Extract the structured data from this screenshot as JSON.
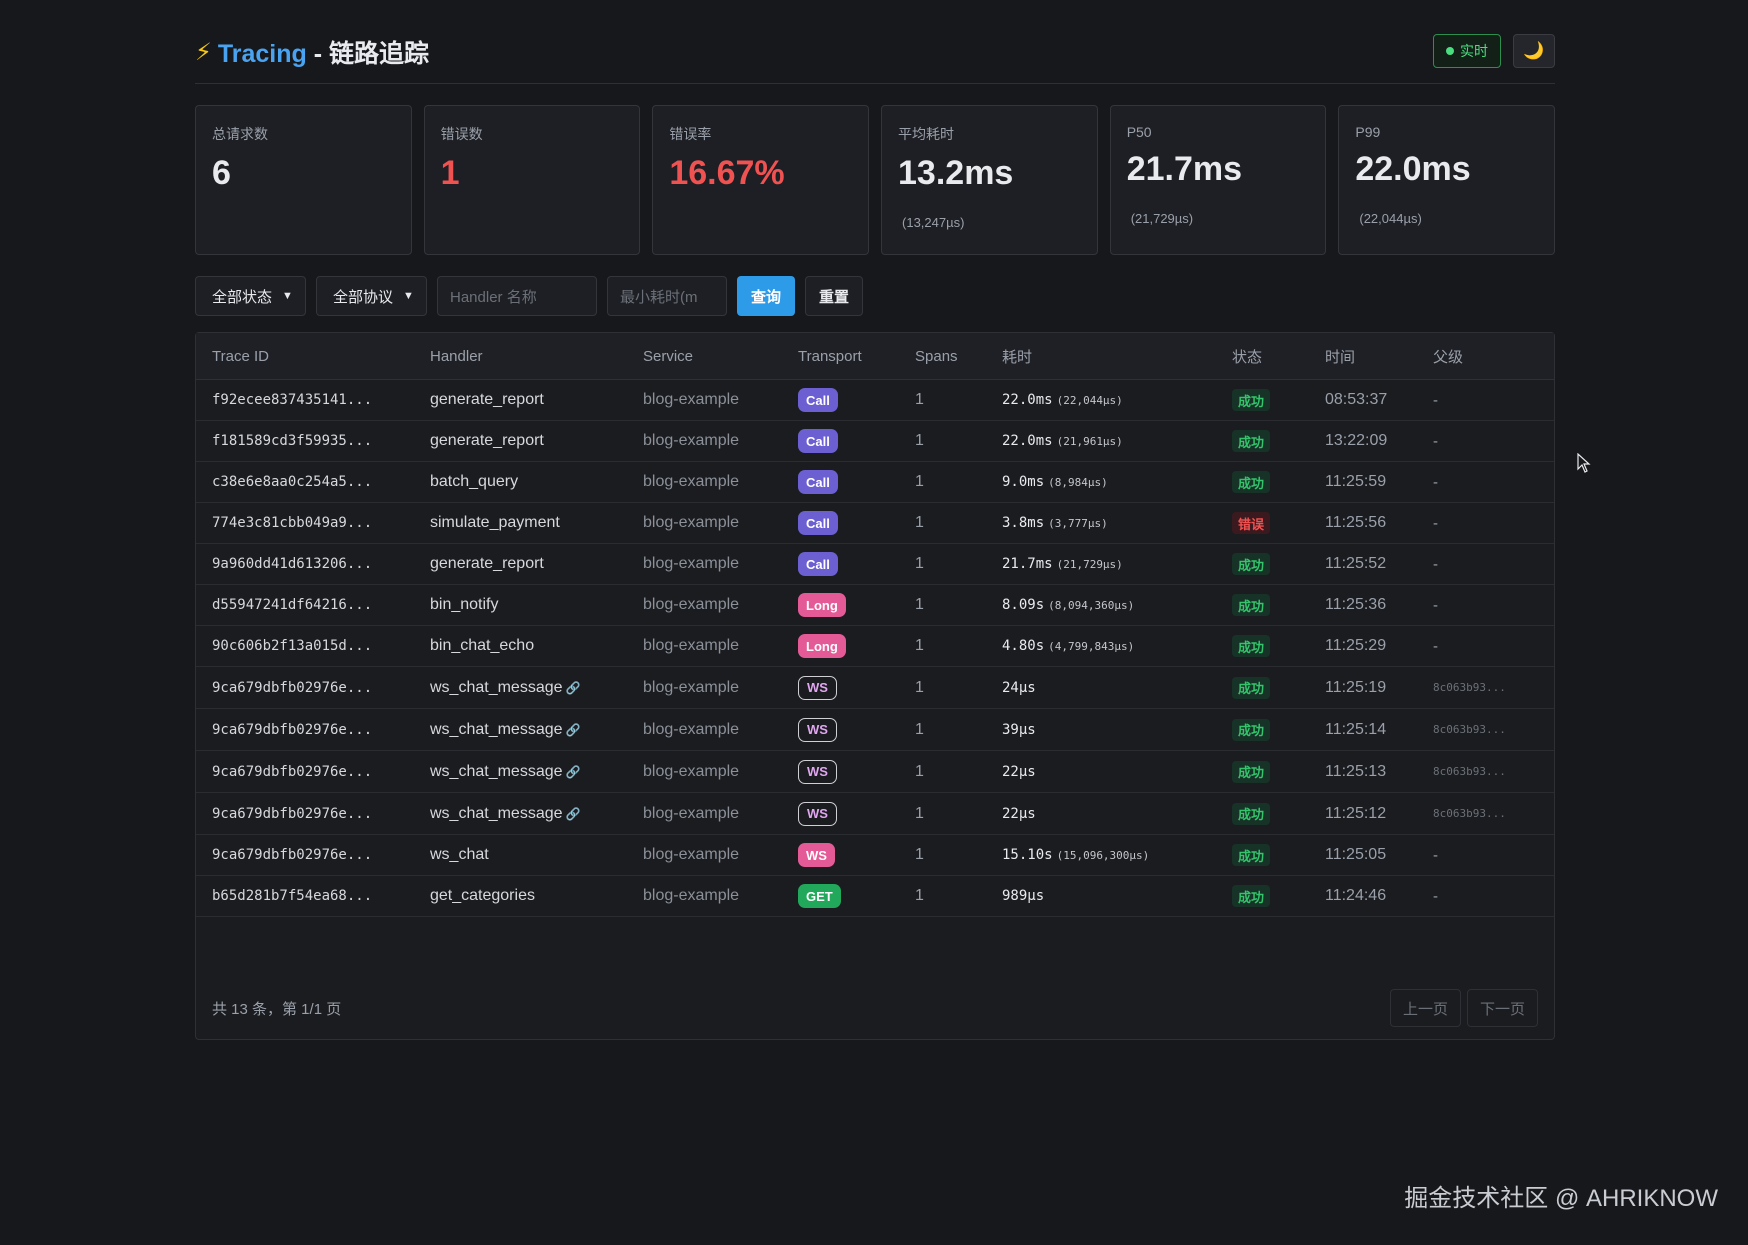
{
  "header": {
    "bolt": "⚡",
    "brand": "Tracing",
    "title_suffix": " - 链路追踪",
    "live_label": "实时",
    "theme_icon": "🌙"
  },
  "stats": [
    {
      "label": "总请求数",
      "value": "6",
      "sub": "",
      "color": "normal"
    },
    {
      "label": "错误数",
      "value": "1",
      "sub": "",
      "color": "red"
    },
    {
      "label": "错误率",
      "value": "16.67%",
      "sub": "",
      "color": "red"
    },
    {
      "label": "平均耗时",
      "value": "13.2ms",
      "sub": "(13,247µs)",
      "color": "normal"
    },
    {
      "label": "P50",
      "value": "21.7ms",
      "sub": "(21,729µs)",
      "color": "normal"
    },
    {
      "label": "P99",
      "value": "22.0ms",
      "sub": "(22,044µs)",
      "color": "normal"
    }
  ],
  "filters": {
    "status_select": "全部状态",
    "protocol_select": "全部协议",
    "handler_placeholder": "Handler 名称",
    "min_duration_placeholder": "最小耗时(m",
    "query_label": "查询",
    "reset_label": "重置"
  },
  "table": {
    "columns": [
      "Trace ID",
      "Handler",
      "Service",
      "Transport",
      "Spans",
      "耗时",
      "状态",
      "时间",
      "父级"
    ],
    "rows": [
      {
        "trace_id": "f92ecee837435141...",
        "handler": "generate_report",
        "link": false,
        "service": "blog-example",
        "transport": "Call",
        "transport_style": "call",
        "spans": "1",
        "duration": "22.0ms",
        "duration_us": "(22,044µs)",
        "status": "成功",
        "status_type": "ok",
        "time": "08:53:37",
        "parent": "-"
      },
      {
        "trace_id": "f181589cd3f59935...",
        "handler": "generate_report",
        "link": false,
        "service": "blog-example",
        "transport": "Call",
        "transport_style": "call",
        "spans": "1",
        "duration": "22.0ms",
        "duration_us": "(21,961µs)",
        "status": "成功",
        "status_type": "ok",
        "time": "13:22:09",
        "parent": "-"
      },
      {
        "trace_id": "c38e6e8aa0c254a5...",
        "handler": "batch_query",
        "link": false,
        "service": "blog-example",
        "transport": "Call",
        "transport_style": "call",
        "spans": "1",
        "duration": "9.0ms",
        "duration_us": "(8,984µs)",
        "status": "成功",
        "status_type": "ok",
        "time": "11:25:59",
        "parent": "-"
      },
      {
        "trace_id": "774e3c81cbb049a9...",
        "handler": "simulate_payment",
        "link": false,
        "service": "blog-example",
        "transport": "Call",
        "transport_style": "call",
        "spans": "1",
        "duration": "3.8ms",
        "duration_us": "(3,777µs)",
        "status": "错误",
        "status_type": "err",
        "time": "11:25:56",
        "parent": "-"
      },
      {
        "trace_id": "9a960dd41d613206...",
        "handler": "generate_report",
        "link": false,
        "service": "blog-example",
        "transport": "Call",
        "transport_style": "call",
        "spans": "1",
        "duration": "21.7ms",
        "duration_us": "(21,729µs)",
        "status": "成功",
        "status_type": "ok",
        "time": "11:25:52",
        "parent": "-"
      },
      {
        "trace_id": "d55947241df64216...",
        "handler": "bin_notify",
        "link": false,
        "service": "blog-example",
        "transport": "Long",
        "transport_style": "long",
        "spans": "1",
        "duration": "8.09s",
        "duration_us": "(8,094,360µs)",
        "status": "成功",
        "status_type": "ok",
        "time": "11:25:36",
        "parent": "-"
      },
      {
        "trace_id": "90c606b2f13a015d...",
        "handler": "bin_chat_echo",
        "link": false,
        "service": "blog-example",
        "transport": "Long",
        "transport_style": "long",
        "spans": "1",
        "duration": "4.80s",
        "duration_us": "(4,799,843µs)",
        "status": "成功",
        "status_type": "ok",
        "time": "11:25:29",
        "parent": "-"
      },
      {
        "trace_id": "9ca679dbfb02976e...",
        "handler": "ws_chat_message",
        "link": true,
        "service": "blog-example",
        "transport": "WS",
        "transport_style": "ws",
        "spans": "1",
        "duration": "24µs",
        "duration_us": "",
        "status": "成功",
        "status_type": "ok",
        "time": "11:25:19",
        "parent": "8c063b93..."
      },
      {
        "trace_id": "9ca679dbfb02976e...",
        "handler": "ws_chat_message",
        "link": true,
        "service": "blog-example",
        "transport": "WS",
        "transport_style": "ws",
        "spans": "1",
        "duration": "39µs",
        "duration_us": "",
        "status": "成功",
        "status_type": "ok",
        "time": "11:25:14",
        "parent": "8c063b93..."
      },
      {
        "trace_id": "9ca679dbfb02976e...",
        "handler": "ws_chat_message",
        "link": true,
        "service": "blog-example",
        "transport": "WS",
        "transport_style": "ws",
        "spans": "1",
        "duration": "22µs",
        "duration_us": "",
        "status": "成功",
        "status_type": "ok",
        "time": "11:25:13",
        "parent": "8c063b93..."
      },
      {
        "trace_id": "9ca679dbfb02976e...",
        "handler": "ws_chat_message",
        "link": true,
        "service": "blog-example",
        "transport": "WS",
        "transport_style": "ws",
        "spans": "1",
        "duration": "22µs",
        "duration_us": "",
        "status": "成功",
        "status_type": "ok",
        "time": "11:25:12",
        "parent": "8c063b93..."
      },
      {
        "trace_id": "9ca679dbfb02976e...",
        "handler": "ws_chat",
        "link": false,
        "service": "blog-example",
        "transport": "WS",
        "transport_style": "wsfill",
        "spans": "1",
        "duration": "15.10s",
        "duration_us": "(15,096,300µs)",
        "status": "成功",
        "status_type": "ok",
        "time": "11:25:05",
        "parent": "-"
      },
      {
        "trace_id": "b65d281b7f54ea68...",
        "handler": "get_categories",
        "link": false,
        "service": "blog-example",
        "transport": "GET",
        "transport_style": "get",
        "spans": "1",
        "duration": "989µs",
        "duration_us": "",
        "status": "成功",
        "status_type": "ok",
        "time": "11:24:46",
        "parent": "-"
      }
    ]
  },
  "footer": {
    "info": "共 13 条，第 1/1 页",
    "prev_label": "上一页",
    "next_label": "下一页"
  },
  "watermark": "掘金技术社区 @ AHRIKNOW"
}
